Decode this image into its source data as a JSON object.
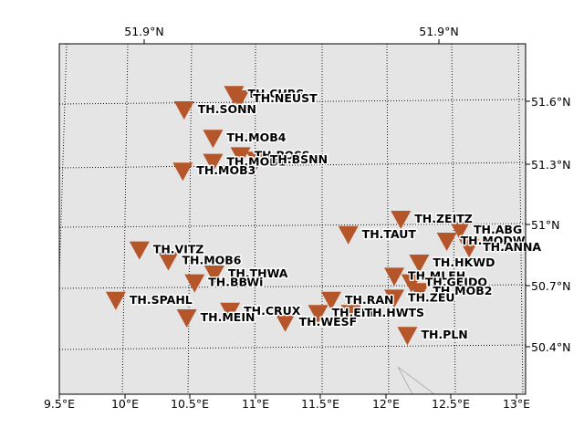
{
  "map": {
    "background_color": "#e5e5e5",
    "grid_style": "dotted",
    "marker_color": "#b5562a",
    "marker_shape": "inverted-triangle",
    "lon_range": [
      9.5,
      13.05
    ],
    "lat_range": [
      50.25,
      51.85
    ],
    "bottom_lon_ticks": [
      "9.5°E",
      "10°E",
      "10.5°E",
      "11°E",
      "11.5°E",
      "12°E",
      "12.5°E",
      "13°E"
    ],
    "top_lat_ticks": [
      "51.9°N",
      "51.9°N"
    ],
    "right_lat_ticks": [
      "51.6°N",
      "51.3°N",
      "51°N",
      "50.7°N",
      "50.4°N"
    ]
  },
  "stations": [
    {
      "name": "TH.CHRS",
      "lon": 10.83,
      "lat": 51.62
    },
    {
      "name": "TH.NEUST",
      "lon": 10.87,
      "lat": 51.6
    },
    {
      "name": "TH.SONN",
      "lon": 10.45,
      "lat": 51.55
    },
    {
      "name": "TH.MOB4",
      "lon": 10.67,
      "lat": 51.42
    },
    {
      "name": "TH.POSS",
      "lon": 10.88,
      "lat": 51.34
    },
    {
      "name": "TH.MOB1",
      "lon": 10.67,
      "lat": 51.31
    },
    {
      "name": "TH.BSNN",
      "lon": 11.0,
      "lat": 51.32
    },
    {
      "name": "TH.MOB3",
      "lon": 10.44,
      "lat": 51.27
    },
    {
      "name": "TH.ZEITZ",
      "lon": 12.1,
      "lat": 51.05
    },
    {
      "name": "TH.TAUT",
      "lon": 11.7,
      "lat": 50.98
    },
    {
      "name": "TH.ABG",
      "lon": 12.55,
      "lat": 51.0
    },
    {
      "name": "TH.MODW",
      "lon": 12.45,
      "lat": 50.95
    },
    {
      "name": "TH.ANNA",
      "lon": 12.62,
      "lat": 50.92
    },
    {
      "name": "TH.VITZ",
      "lon": 10.11,
      "lat": 50.91
    },
    {
      "name": "TH.MOB6",
      "lon": 10.33,
      "lat": 50.86
    },
    {
      "name": "TH.HKWD",
      "lon": 12.24,
      "lat": 50.85
    },
    {
      "name": "TH.THWA",
      "lon": 10.68,
      "lat": 50.8
    },
    {
      "name": "TH.MLFH",
      "lon": 12.05,
      "lat": 50.79
    },
    {
      "name": "TH.BBWi",
      "lon": 10.53,
      "lat": 50.76
    },
    {
      "name": "TH.GEIDO",
      "lon": 12.18,
      "lat": 50.76
    },
    {
      "name": "TH.MOB2",
      "lon": 12.24,
      "lat": 50.72
    },
    {
      "name": "TH.ZEU",
      "lon": 12.05,
      "lat": 50.69
    },
    {
      "name": "TH.SPAHL",
      "lon": 9.93,
      "lat": 50.68
    },
    {
      "name": "TH.RAN",
      "lon": 11.57,
      "lat": 50.68
    },
    {
      "name": "TH.CRUX",
      "lon": 10.8,
      "lat": 50.63
    },
    {
      "name": "TH.EIB",
      "lon": 11.47,
      "lat": 50.62
    },
    {
      "name": "TH.HWTS",
      "lon": 11.72,
      "lat": 50.62
    },
    {
      "name": "TH.MEIN",
      "lon": 10.47,
      "lat": 50.6
    },
    {
      "name": "TH.WESF",
      "lon": 11.22,
      "lat": 50.58
    },
    {
      "name": "TH.PLN",
      "lon": 12.15,
      "lat": 50.52
    }
  ]
}
